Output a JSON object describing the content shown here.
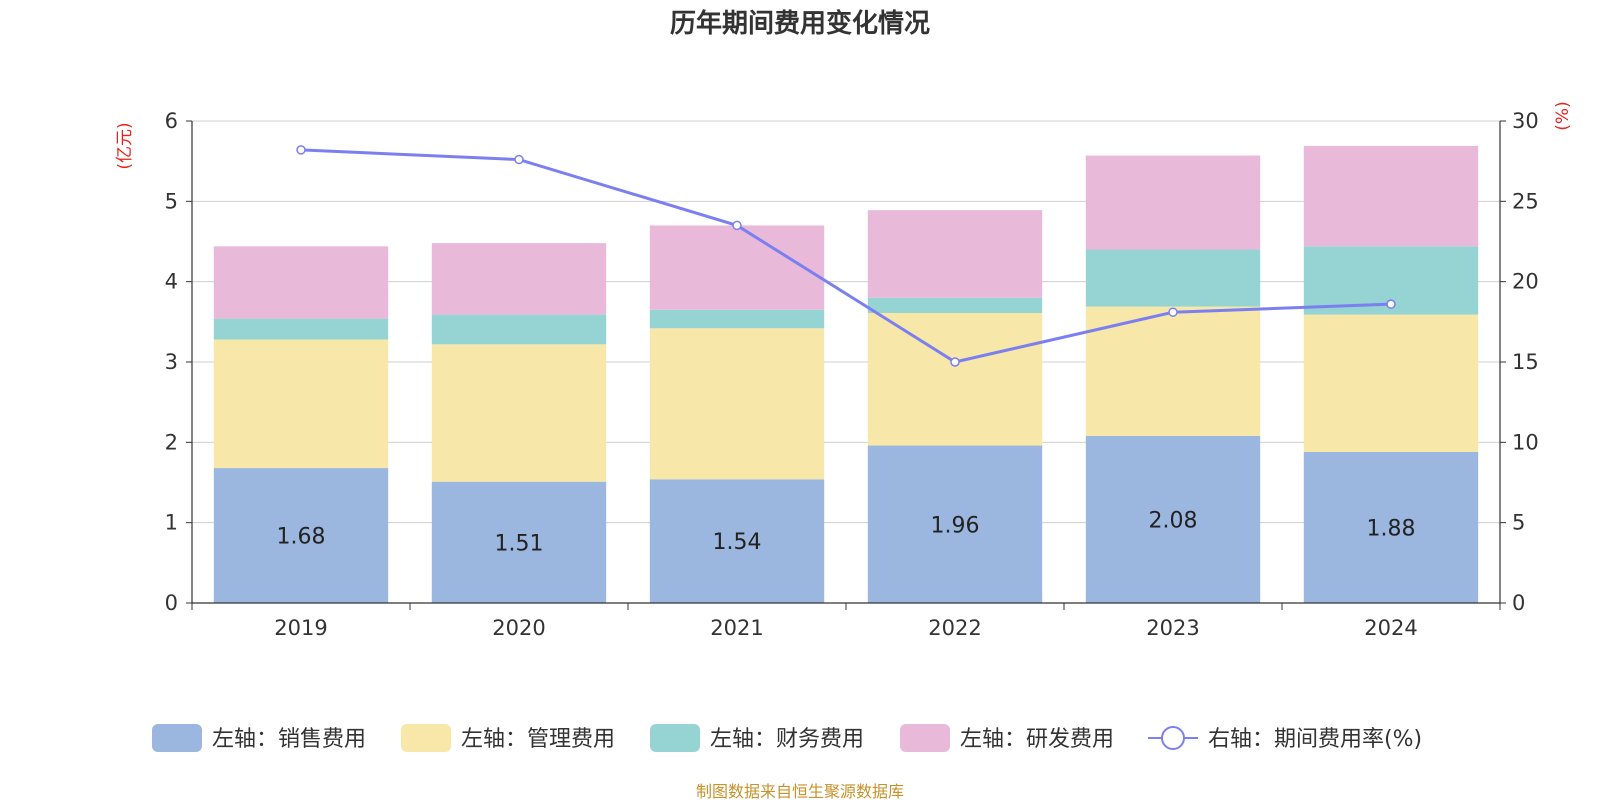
{
  "chart_data": {
    "type": "bar",
    "title": "历年期间费用变化情况",
    "categories": [
      "2019",
      "2020",
      "2021",
      "2022",
      "2023",
      "2024"
    ],
    "left_axis": {
      "unit": "(亿元)",
      "ylim": [
        0,
        6
      ],
      "ticks": [
        "0",
        "1",
        "2",
        "3",
        "4",
        "5",
        "6"
      ]
    },
    "right_axis": {
      "unit": "(%)",
      "ylim": [
        0,
        30
      ],
      "ticks": [
        "0",
        "5",
        "10",
        "15",
        "20",
        "25",
        "30"
      ]
    },
    "series": [
      {
        "name": "左轴：销售费用",
        "axis": "left",
        "kind": "bar",
        "stack": true,
        "color": "#9bb7e0",
        "values": [
          1.68,
          1.51,
          1.54,
          1.96,
          2.08,
          1.88
        ],
        "labels": [
          "1.68",
          "1.51",
          "1.54",
          "1.96",
          "2.08",
          "1.88"
        ]
      },
      {
        "name": "左轴：管理费用",
        "axis": "left",
        "kind": "bar",
        "stack": true,
        "color": "#f7e7a8",
        "values": [
          1.6,
          1.71,
          1.88,
          1.65,
          1.61,
          1.71
        ]
      },
      {
        "name": "左轴：财务费用",
        "axis": "left",
        "kind": "bar",
        "stack": true,
        "color": "#96d3d3",
        "values": [
          0.26,
          0.37,
          0.23,
          0.19,
          0.71,
          0.85
        ]
      },
      {
        "name": "左轴：研发费用",
        "axis": "left",
        "kind": "bar",
        "stack": true,
        "color": "#e8b9d9",
        "values": [
          0.9,
          0.89,
          1.05,
          1.09,
          1.17,
          1.25
        ]
      },
      {
        "name": "右轴：期间费用率(%)",
        "axis": "right",
        "kind": "line",
        "color": "#7b7ff0",
        "values": [
          28.2,
          27.6,
          23.5,
          15.0,
          18.1,
          18.6
        ]
      }
    ],
    "grid": true,
    "legend_position": "bottom"
  },
  "footer": {
    "source": "制图数据来自恒生聚源数据库"
  }
}
